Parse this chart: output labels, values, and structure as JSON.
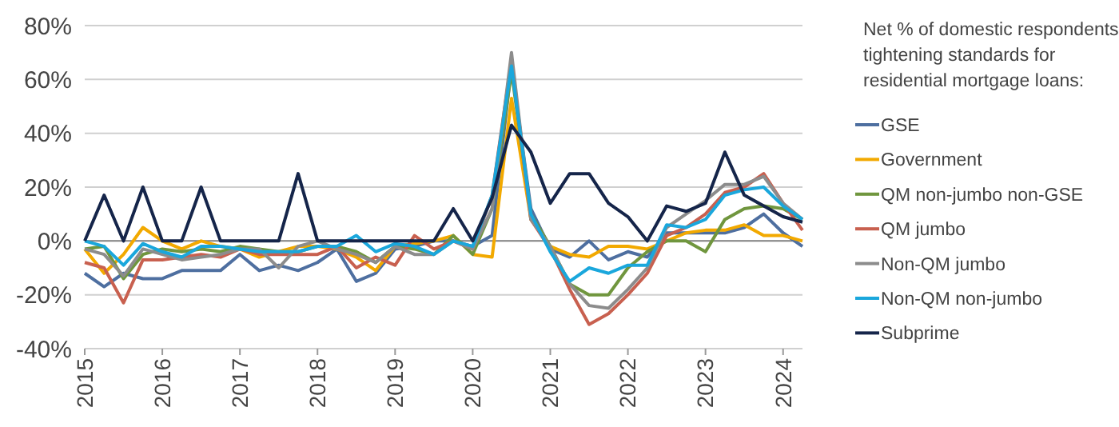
{
  "chart_data": {
    "type": "line",
    "legend_title": "Net % of domestic respondents tightening standards for residential mortgage loans:",
    "x": [
      2015,
      2015.25,
      2015.5,
      2015.75,
      2016,
      2016.25,
      2016.5,
      2016.75,
      2017,
      2017.25,
      2017.5,
      2017.75,
      2018,
      2018.25,
      2018.5,
      2018.75,
      2019,
      2019.25,
      2019.5,
      2019.75,
      2020,
      2020.25,
      2020.5,
      2020.75,
      2021,
      2021.25,
      2021.5,
      2021.75,
      2022,
      2022.25,
      2022.5,
      2022.75,
      2023,
      2023.25,
      2023.5,
      2023.75,
      2024,
      2024.25
    ],
    "series": [
      {
        "name": "GSE",
        "color": "#4e6fa0",
        "values": [
          -12,
          -17,
          -12,
          -14,
          -14,
          -11,
          -11,
          -11,
          -5,
          -11,
          -9,
          -11,
          -8,
          -3,
          -15,
          -12,
          -3,
          -2,
          0,
          0,
          -2,
          2,
          65,
          12,
          -3,
          -6,
          0,
          -7,
          -4,
          -6,
          3,
          3,
          3,
          3,
          5,
          10,
          3,
          -2
        ]
      },
      {
        "name": "Government",
        "color": "#f2a900",
        "values": [
          -3,
          -12,
          -5,
          5,
          0,
          -3,
          0,
          -2,
          -3,
          -6,
          -4,
          -2,
          -2,
          -3,
          -6,
          -11,
          -2,
          -1,
          0,
          2,
          -5,
          -6,
          53,
          8,
          -2,
          -5,
          -6,
          -2,
          -2,
          -3,
          0,
          3,
          4,
          4,
          6,
          2,
          2,
          0
        ]
      },
      {
        "name": "QM non-jumbo non-GSE",
        "color": "#70963e",
        "values": [
          -3,
          -2,
          -14,
          -5,
          -3,
          -4,
          -3,
          -4,
          -2,
          -3,
          -4,
          -4,
          -2,
          -2,
          -4,
          -8,
          -2,
          -3,
          -5,
          2,
          -5,
          12,
          63,
          10,
          -2,
          -16,
          -20,
          -20,
          -10,
          -4,
          0,
          0,
          -4,
          8,
          12,
          13,
          12,
          8
        ]
      },
      {
        "name": "QM jumbo",
        "color": "#c8604f",
        "values": [
          -8,
          -10,
          -23,
          -7,
          -7,
          -6,
          -5,
          -6,
          -3,
          -5,
          -5,
          -5,
          -5,
          -2,
          -10,
          -6,
          -9,
          2,
          -3,
          0,
          -3,
          17,
          67,
          8,
          -3,
          -18,
          -31,
          -27,
          -20,
          -12,
          2,
          5,
          10,
          18,
          20,
          25,
          14,
          4
        ]
      },
      {
        "name": "Non-QM jumbo",
        "color": "#8c8c8c",
        "values": [
          -3,
          -5,
          -13,
          -3,
          -5,
          -7,
          -6,
          -5,
          -3,
          -3,
          -10,
          -2,
          0,
          -3,
          -5,
          -8,
          -2,
          -5,
          -5,
          0,
          -3,
          12,
          70,
          8,
          -2,
          -16,
          -24,
          -25,
          -18,
          -10,
          5,
          10,
          15,
          21,
          21,
          24,
          14,
          8
        ]
      },
      {
        "name": "Non-QM non-jumbo",
        "color": "#1aa7dc",
        "values": [
          0,
          -2,
          -9,
          -1,
          -4,
          -6,
          -2,
          -2,
          -3,
          -4,
          -4,
          -4,
          -2,
          -2,
          2,
          -4,
          -1,
          -2,
          -5,
          0,
          -2,
          17,
          65,
          10,
          -4,
          -15,
          -10,
          -12,
          -9,
          -9,
          6,
          5,
          8,
          17,
          19,
          20,
          13,
          8
        ]
      },
      {
        "name": "Subprime",
        "color": "#15254a",
        "values": [
          0,
          17,
          0,
          20,
          0,
          0,
          20,
          0,
          0,
          0,
          0,
          25,
          0,
          0,
          0,
          0,
          0,
          0,
          0,
          12,
          0,
          16,
          43,
          33,
          14,
          25,
          25,
          14,
          9,
          0,
          13,
          11,
          14,
          33,
          17,
          13,
          9,
          7
        ]
      }
    ],
    "xlim": [
      2015,
      2024.25
    ],
    "xticks": [
      2015,
      2016,
      2017,
      2018,
      2019,
      2020,
      2021,
      2022,
      2023,
      2024
    ],
    "ylim": [
      -40,
      80
    ],
    "yticks": [
      {
        "value": -40,
        "label": "-40%"
      },
      {
        "value": -20,
        "label": "-20%"
      },
      {
        "value": 0,
        "label": "0%"
      },
      {
        "value": 20,
        "label": "20%"
      },
      {
        "value": 40,
        "label": "40%"
      },
      {
        "value": 60,
        "label": "60%"
      },
      {
        "value": 80,
        "label": "80%"
      }
    ],
    "grid": "y",
    "legend": "right",
    "marker": "none",
    "line_style": "solid"
  }
}
